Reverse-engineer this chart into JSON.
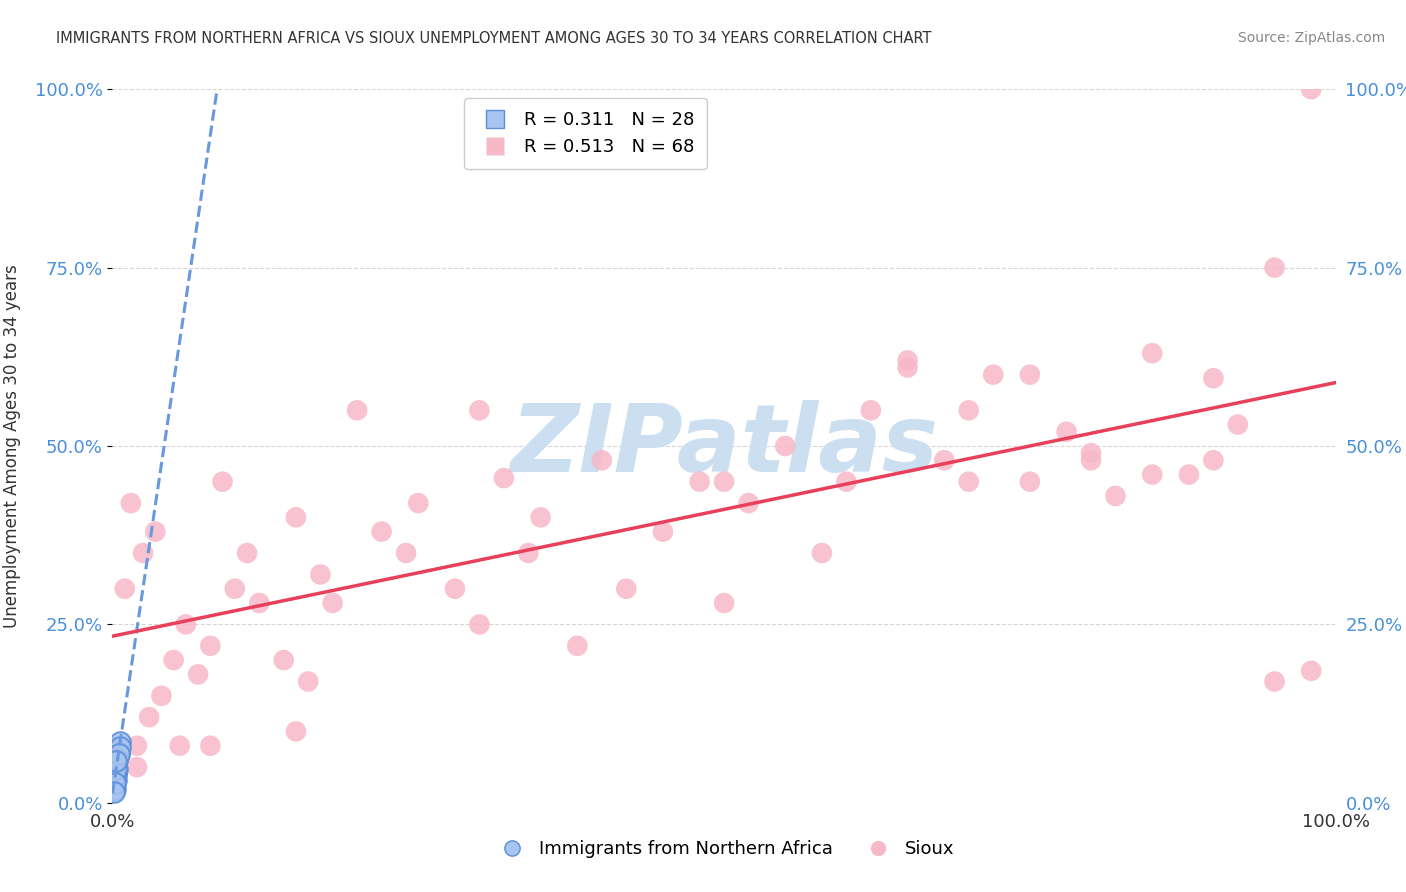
{
  "title": "IMMIGRANTS FROM NORTHERN AFRICA VS SIOUX UNEMPLOYMENT AMONG AGES 30 TO 34 YEARS CORRELATION CHART",
  "source": "Source: ZipAtlas.com",
  "ylabel": "Unemployment Among Ages 30 to 34 years",
  "ytick_labels": [
    "0.0%",
    "25.0%",
    "50.0%",
    "75.0%",
    "100.0%"
  ],
  "ytick_values": [
    0.0,
    0.25,
    0.5,
    0.75,
    1.0
  ],
  "xtick_labels": [
    "0.0%",
    "100.0%"
  ],
  "xtick_values": [
    0.0,
    1.0
  ],
  "blue_label": "Immigrants from Northern Africa",
  "pink_label": "Sioux",
  "blue_R": "0.311",
  "blue_N": "28",
  "pink_R": "0.513",
  "pink_N": "68",
  "blue_dot_color": "#a8c4f0",
  "blue_edge_color": "#5b8dd9",
  "pink_dot_color": "#f7b8c8",
  "blue_line_color": "#6699dd",
  "pink_line_color": "#e8405a",
  "watermark_text": "ZIPatlas",
  "watermark_color": "#ccdff0",
  "bg_color": "#ffffff",
  "grid_color": "#cccccc",
  "title_color": "#333333",
  "source_color": "#888888",
  "axis_label_color": "#333333",
  "tick_color": "#4a90d9",
  "xlim": [
    0.0,
    1.0
  ],
  "ylim": [
    0.0,
    1.0
  ],
  "blue_x": [
    0.002,
    0.003,
    0.001,
    0.004,
    0.005,
    0.002,
    0.003,
    0.006,
    0.001,
    0.002,
    0.004,
    0.003,
    0.002,
    0.005,
    0.001,
    0.003,
    0.004,
    0.002,
    0.006,
    0.003,
    0.001,
    0.002,
    0.003,
    0.004,
    0.005,
    0.002,
    0.003,
    0.001
  ],
  "blue_y": [
    0.045,
    0.055,
    0.03,
    0.065,
    0.075,
    0.02,
    0.04,
    0.085,
    0.025,
    0.05,
    0.06,
    0.042,
    0.035,
    0.07,
    0.022,
    0.052,
    0.048,
    0.058,
    0.078,
    0.032,
    0.018,
    0.038,
    0.048,
    0.062,
    0.068,
    0.028,
    0.058,
    0.015
  ],
  "pink_x": [
    0.01,
    0.015,
    0.02,
    0.025,
    0.03,
    0.035,
    0.04,
    0.05,
    0.055,
    0.06,
    0.07,
    0.08,
    0.09,
    0.1,
    0.11,
    0.12,
    0.14,
    0.15,
    0.16,
    0.17,
    0.18,
    0.2,
    0.22,
    0.24,
    0.25,
    0.28,
    0.3,
    0.32,
    0.34,
    0.35,
    0.38,
    0.4,
    0.42,
    0.45,
    0.48,
    0.5,
    0.52,
    0.55,
    0.58,
    0.6,
    0.62,
    0.65,
    0.68,
    0.7,
    0.72,
    0.75,
    0.78,
    0.8,
    0.82,
    0.85,
    0.88,
    0.9,
    0.92,
    0.95,
    0.98,
    0.02,
    0.08,
    0.15,
    0.3,
    0.5,
    0.65,
    0.7,
    0.75,
    0.8,
    0.85,
    0.9,
    0.95,
    0.98
  ],
  "pink_y": [
    0.3,
    0.42,
    0.08,
    0.35,
    0.12,
    0.38,
    0.15,
    0.2,
    0.08,
    0.25,
    0.18,
    0.22,
    0.45,
    0.3,
    0.35,
    0.28,
    0.2,
    0.4,
    0.17,
    0.32,
    0.28,
    0.55,
    0.38,
    0.35,
    0.42,
    0.3,
    0.25,
    0.455,
    0.35,
    0.4,
    0.22,
    0.48,
    0.3,
    0.38,
    0.45,
    0.28,
    0.42,
    0.5,
    0.35,
    0.45,
    0.55,
    0.62,
    0.48,
    0.55,
    0.6,
    0.45,
    0.52,
    0.48,
    0.43,
    0.63,
    0.46,
    0.48,
    0.53,
    0.17,
    1.0,
    0.05,
    0.08,
    0.1,
    0.55,
    0.45,
    0.61,
    0.45,
    0.6,
    0.49,
    0.46,
    0.595,
    0.75,
    0.185
  ]
}
